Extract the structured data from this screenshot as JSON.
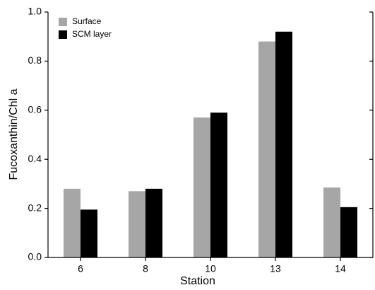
{
  "chart_data": {
    "type": "bar",
    "x_label": "Station",
    "y_label": "Fucoxanthin/Chl a",
    "categories": [
      "6",
      "8",
      "10",
      "13",
      "14"
    ],
    "series": [
      {
        "name": "Surface",
        "color": "#a6a6a6",
        "values": [
          0.28,
          0.27,
          0.57,
          0.88,
          0.285
        ]
      },
      {
        "name": "SCM layer",
        "color": "#000000",
        "values": [
          0.195,
          0.28,
          0.59,
          0.92,
          0.205
        ]
      }
    ],
    "ylim": [
      0,
      1
    ],
    "yticks": [
      {
        "value": 0,
        "label": "0.0"
      },
      0.2,
      0.4,
      0.6,
      0.8,
      {
        "value": 1,
        "label": "1.0"
      }
    ],
    "legend": "upper left"
  }
}
